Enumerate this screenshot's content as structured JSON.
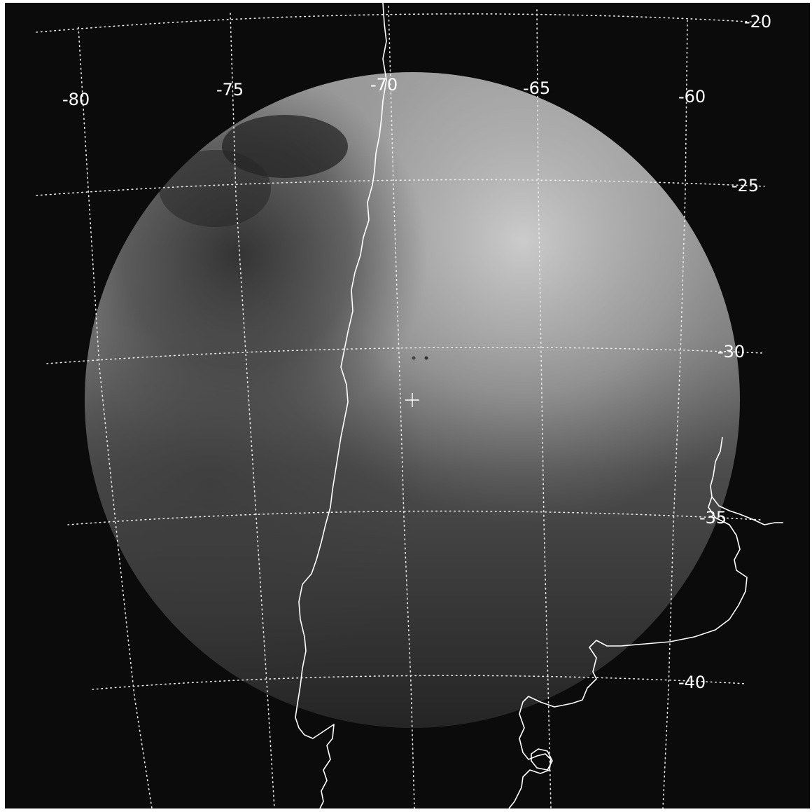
{
  "map": {
    "longitude_labels": [
      "-80",
      "-75",
      "-70",
      "-65",
      "-60"
    ],
    "latitude_labels": [
      "-20",
      "-25",
      "-30",
      "-35",
      "-40"
    ],
    "center_marker": "+",
    "colors": {
      "background": "#0b0b0b",
      "gridlines": "#e8e8e8",
      "coastline": "#ffffff",
      "label": "#ffffff"
    }
  }
}
